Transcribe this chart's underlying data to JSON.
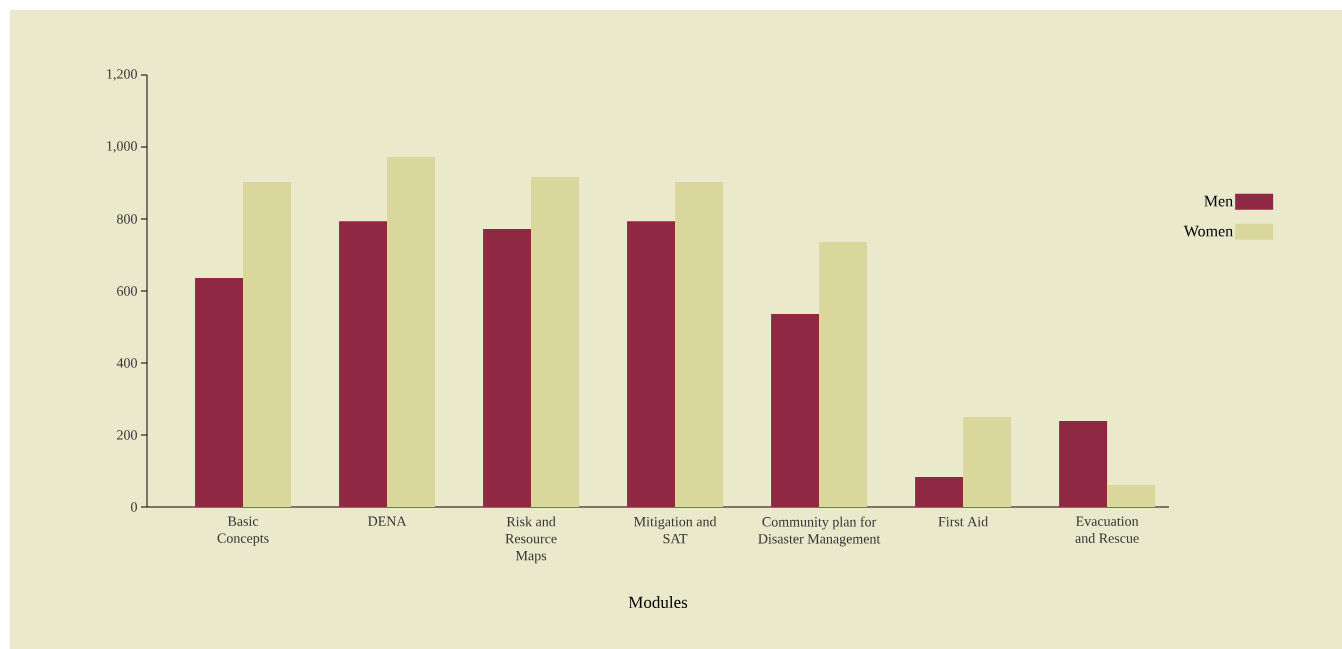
{
  "chart_data": {
    "type": "bar",
    "xlabel": "Modules",
    "categories": [
      "Basic Concepts",
      "DENA",
      "Risk and Resource Maps",
      "Mitigation and SAT",
      "Community plan for Disaster Management",
      "First Aid",
      "Evacuation and Rescue"
    ],
    "series": [
      {
        "name": "Men",
        "color": "#8f2843",
        "values": [
          636,
          794,
          772,
          794,
          536,
          83,
          239
        ]
      },
      {
        "name": "Women",
        "color": "#d9d79b",
        "values": [
          903,
          972,
          917,
          903,
          736,
          250,
          61
        ]
      }
    ],
    "ylim": [
      0,
      1200
    ],
    "yticks": [
      0,
      200,
      400,
      600,
      800,
      {
        "value": 1000,
        "label": "1,000"
      },
      {
        "value": 1200,
        "label": "1,200"
      }
    ],
    "legend": "right"
  }
}
